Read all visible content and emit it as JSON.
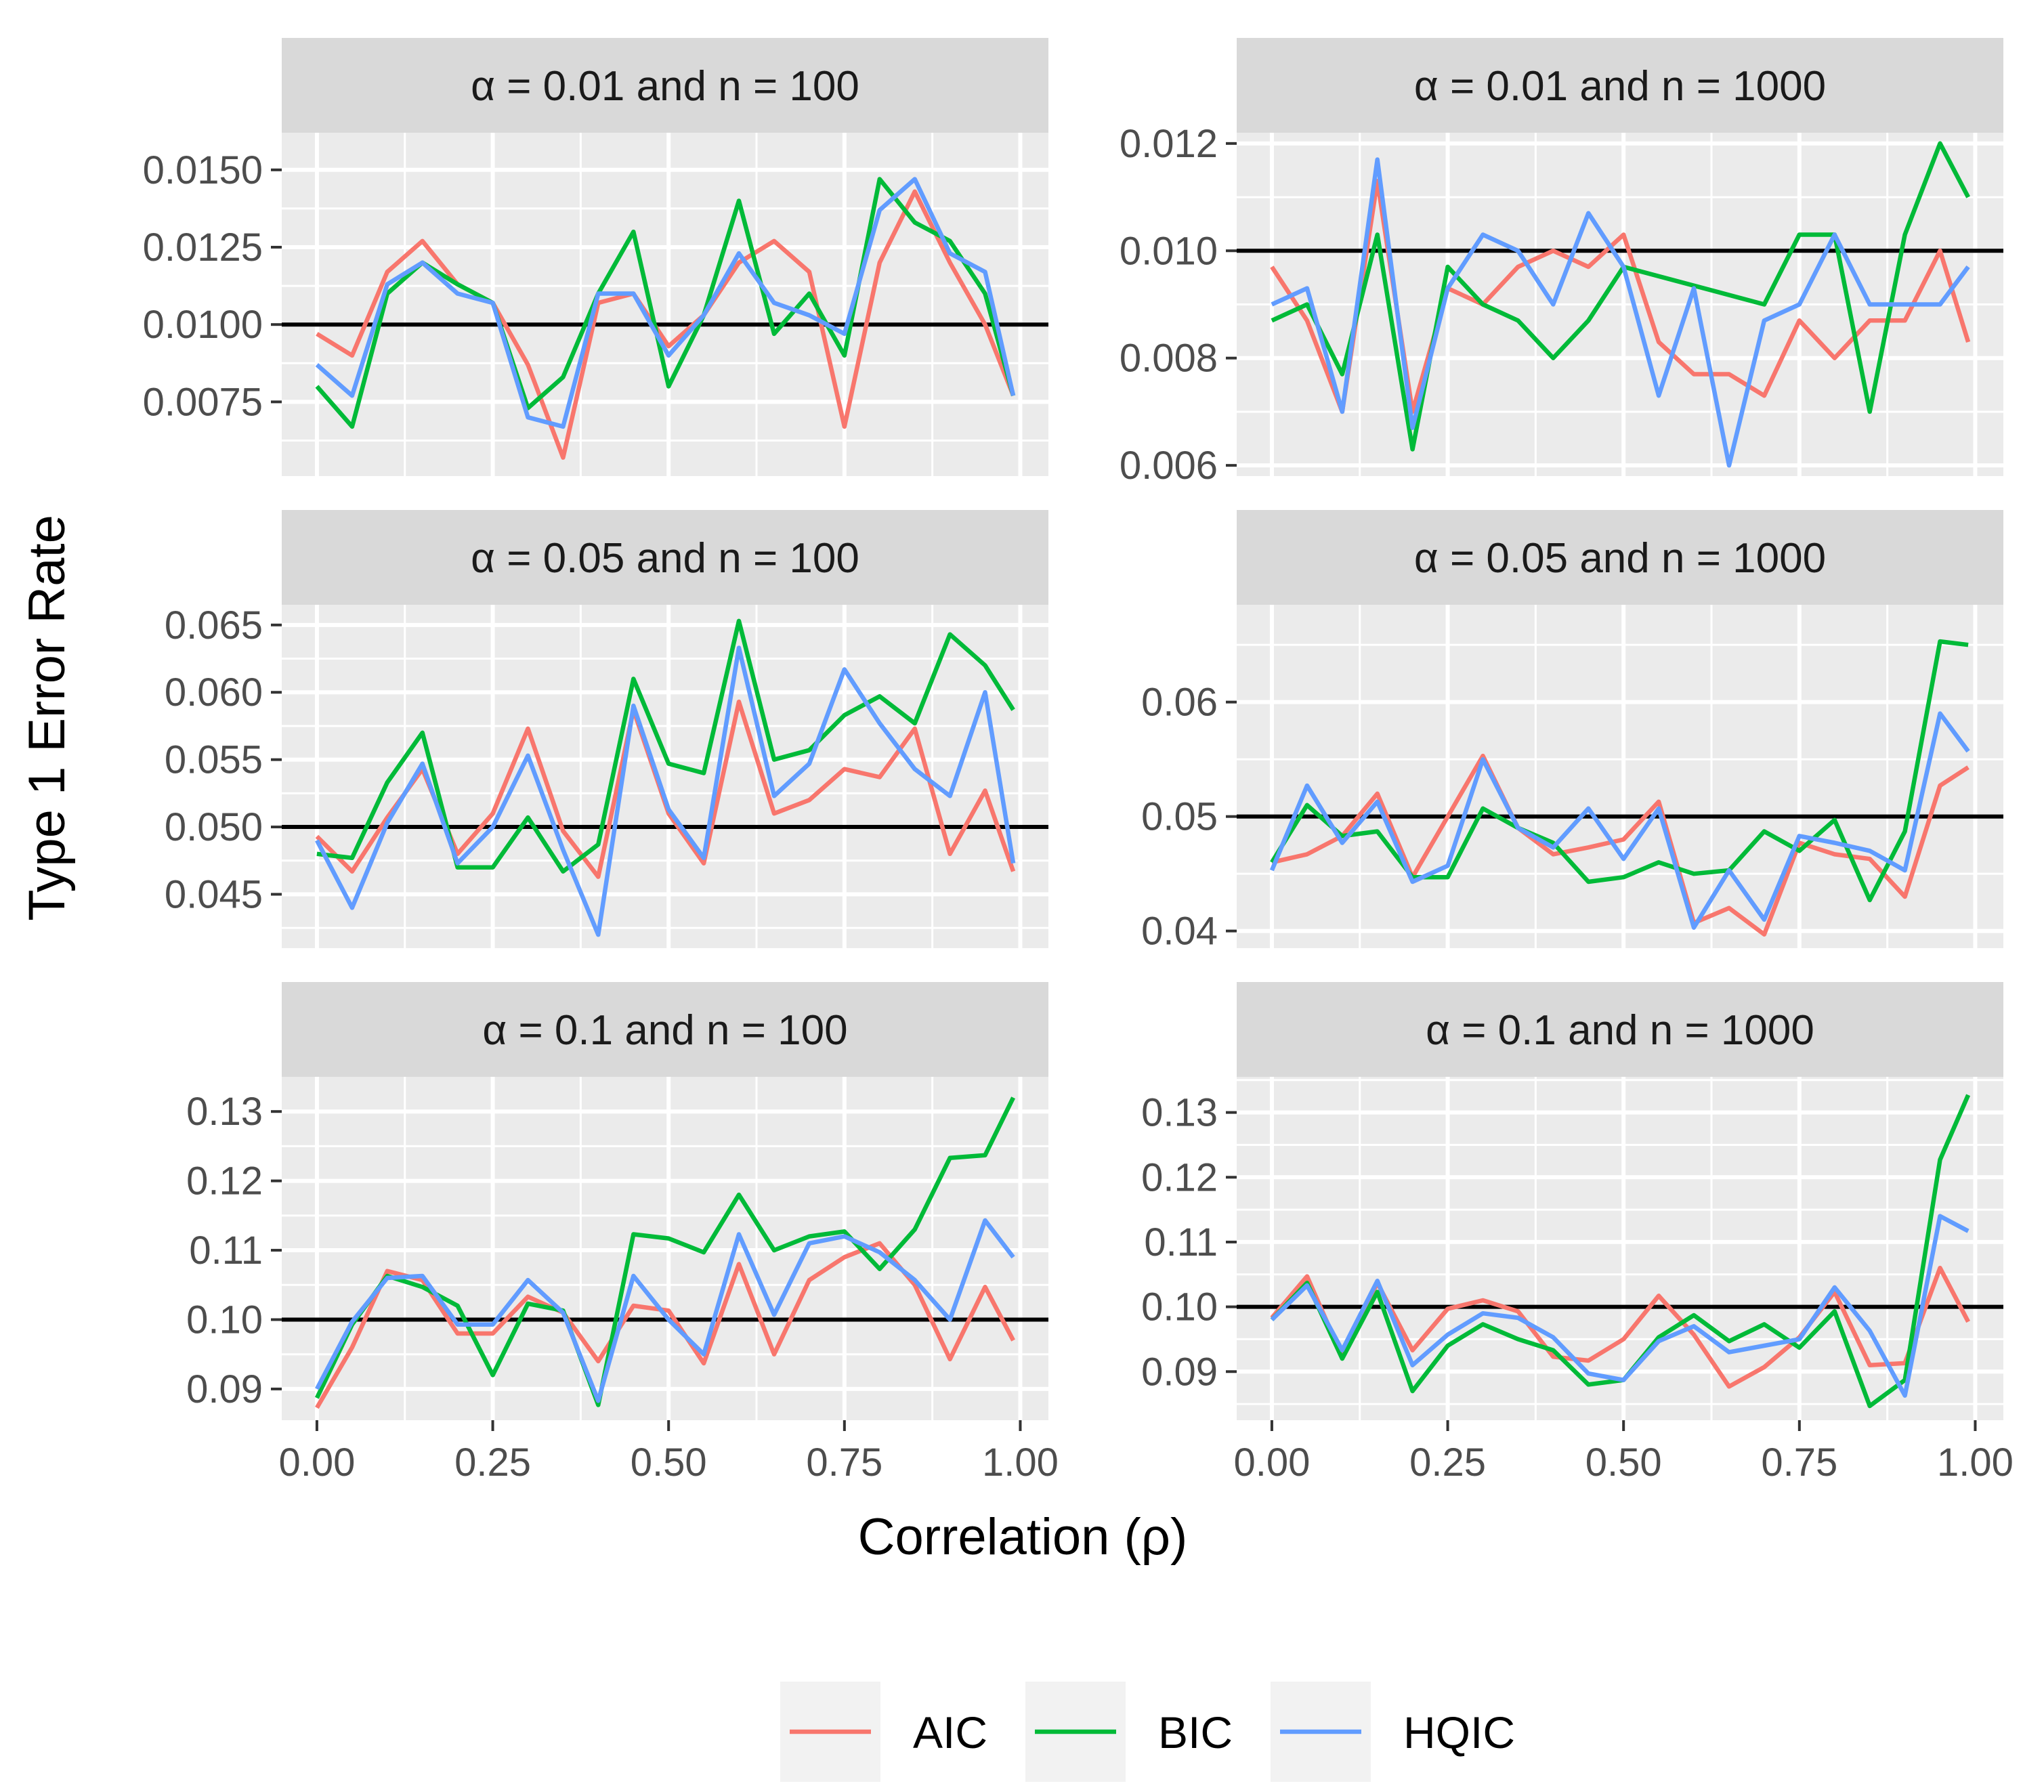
{
  "chart_data": {
    "type": "line",
    "ylabel": "Type 1 Error Rate",
    "xlabel": "Correlation (ρ)",
    "x": [
      0,
      0.05,
      0.1,
      0.15,
      0.2,
      0.25,
      0.3,
      0.35,
      0.4,
      0.45,
      0.5,
      0.55,
      0.6,
      0.65,
      0.7,
      0.75,
      0.8,
      0.85,
      0.9,
      0.95,
      0.99
    ],
    "xlim": [
      -0.05,
      1.04
    ],
    "x_ticks": [
      0,
      0.25,
      0.5,
      0.75,
      1.0
    ],
    "x_tick_labels": [
      "0.00",
      "0.25",
      "0.50",
      "0.75",
      "1.00"
    ],
    "reference_line": "horizontal black line at the nominal α level",
    "colors": {
      "AIC": "#F8766D",
      "BIC": "#00BA38",
      "HQIC": "#619CFF",
      "panel_bg": "#EBEBEB",
      "strip_bg": "#D9D9D9",
      "grid": "#FFFFFF",
      "reference": "#000000"
    },
    "legend": {
      "position": "bottom",
      "entries": [
        "AIC",
        "BIC",
        "HQIC"
      ]
    },
    "panels": [
      {
        "strip": "α = 0.01 and n = 100",
        "reference": 0.01,
        "ylim": [
          0.0051,
          0.0162
        ],
        "y_ticks": [
          0.0075,
          0.01,
          0.0125,
          0.015
        ],
        "y_tick_labels": [
          "0.0075",
          "0.0100",
          "0.0125",
          "0.0150"
        ],
        "series": [
          {
            "name": "AIC",
            "values": [
              0.0097,
              0.009,
              0.0117,
              0.0127,
              0.0113,
              0.0107,
              0.0087,
              0.0057,
              0.0107,
              0.011,
              0.0093,
              0.0103,
              0.012,
              0.0127,
              0.0117,
              0.0067,
              0.012,
              0.0143,
              0.012,
              0.01,
              0.0077
            ]
          },
          {
            "name": "BIC",
            "values": [
              0.008,
              0.0067,
              0.011,
              0.012,
              0.0113,
              0.0107,
              0.0073,
              0.0083,
              0.011,
              0.013,
              0.008,
              0.0103,
              0.014,
              0.0097,
              0.011,
              0.009,
              0.0147,
              0.0133,
              0.0127,
              0.011,
              0.0077
            ]
          },
          {
            "name": "HQIC",
            "values": [
              0.0087,
              0.0077,
              0.0113,
              0.012,
              0.011,
              0.0107,
              0.007,
              0.0067,
              0.011,
              0.011,
              0.009,
              0.0103,
              0.0123,
              0.0107,
              0.0103,
              0.0097,
              0.0137,
              0.0147,
              0.0123,
              0.0117,
              0.0077
            ]
          }
        ]
      },
      {
        "strip": "α = 0.01 and n = 1000",
        "reference": 0.01,
        "ylim": [
          0.0058,
          0.0122
        ],
        "y_ticks": [
          0.006,
          0.008,
          0.01,
          0.012
        ],
        "y_tick_labels": [
          "0.006",
          "0.008",
          "0.010",
          "0.012"
        ],
        "series": [
          {
            "name": "AIC",
            "values": [
              0.0097,
              0.0087,
              0.007,
              0.0113,
              0.007,
              0.0093,
              0.009,
              0.0097,
              0.01,
              0.0097,
              0.0103,
              0.0083,
              0.0077,
              0.0077,
              0.0073,
              0.0087,
              0.008,
              0.0087,
              0.0087,
              0.01,
              0.0083
            ]
          },
          {
            "name": "BIC",
            "values": [
              0.0087,
              0.009,
              0.0077,
              0.0103,
              0.0063,
              0.0097,
              0.009,
              0.0087,
              0.008,
              0.0087,
              0.0097,
              null,
              null,
              null,
              0.009,
              0.0103,
              0.0103,
              0.007,
              0.0103,
              0.012,
              0.011
            ]
          },
          {
            "name": "HQIC",
            "values": [
              0.009,
              0.0093,
              0.007,
              0.0117,
              0.0067,
              0.0093,
              0.0103,
              0.01,
              0.009,
              0.0107,
              0.0097,
              0.0073,
              0.0093,
              0.006,
              0.0087,
              0.009,
              0.0103,
              0.009,
              0.009,
              0.009,
              0.0097
            ]
          }
        ]
      },
      {
        "strip": "α = 0.05 and n = 100",
        "reference": 0.05,
        "ylim": [
          0.041,
          0.0665
        ],
        "y_ticks": [
          0.045,
          0.05,
          0.055,
          0.06,
          0.065
        ],
        "y_tick_labels": [
          "0.045",
          "0.050",
          "0.055",
          "0.060",
          "0.065"
        ],
        "series": [
          {
            "name": "AIC",
            "values": [
              0.0493,
              0.0467,
              0.0507,
              0.0543,
              0.048,
              0.051,
              0.0573,
              0.0497,
              0.0463,
              0.0587,
              0.051,
              0.0473,
              0.0593,
              0.051,
              0.052,
              0.0543,
              0.0537,
              0.0573,
              0.048,
              0.0527,
              0.0467
            ]
          },
          {
            "name": "BIC",
            "values": [
              0.048,
              0.0477,
              0.0533,
              0.057,
              0.047,
              0.047,
              0.0507,
              0.0467,
              0.0487,
              0.061,
              0.0547,
              0.054,
              0.0653,
              0.055,
              0.0557,
              0.0583,
              0.0597,
              0.0577,
              0.0643,
              0.062,
              0.0587
            ]
          },
          {
            "name": "HQIC",
            "values": [
              0.049,
              0.044,
              0.0503,
              0.0547,
              0.0473,
              0.05,
              0.0553,
              0.0483,
              0.042,
              0.059,
              0.0513,
              0.0477,
              0.0633,
              0.0523,
              0.0547,
              0.0617,
              0.0577,
              0.0543,
              0.0523,
              0.06,
              0.0473
            ]
          }
        ]
      },
      {
        "strip": "α = 0.05 and n = 1000",
        "reference": 0.05,
        "ylim": [
          0.0385,
          0.0685
        ],
        "y_ticks": [
          0.04,
          0.05,
          0.06
        ],
        "y_tick_labels": [
          "0.04",
          "0.05",
          "0.06"
        ],
        "series": [
          {
            "name": "AIC",
            "values": [
              0.046,
              0.0467,
              0.0483,
              0.052,
              0.0447,
              0.05,
              0.0553,
              0.049,
              0.0467,
              0.0473,
              0.048,
              0.0513,
              0.0407,
              0.042,
              0.0397,
              0.0477,
              0.0467,
              0.0463,
              0.043,
              0.0527,
              0.0543
            ]
          },
          {
            "name": "BIC",
            "values": [
              0.046,
              0.051,
              0.0483,
              0.0487,
              0.0447,
              0.0447,
              0.0507,
              0.049,
              0.0477,
              0.0443,
              0.0447,
              0.046,
              0.045,
              0.0453,
              0.0487,
              0.047,
              0.0497,
              0.0427,
              0.0487,
              0.0653,
              0.065
            ]
          },
          {
            "name": "HQIC",
            "values": [
              0.0453,
              0.0527,
              0.0477,
              0.0513,
              0.0443,
              0.0457,
              0.055,
              0.049,
              0.0473,
              0.0507,
              0.0463,
              0.0507,
              0.0403,
              0.0453,
              0.041,
              0.0483,
              0.0477,
              0.047,
              0.0453,
              0.059,
              0.0557
            ]
          }
        ]
      },
      {
        "strip": "α = 0.1 and n = 100",
        "reference": 0.1,
        "ylim": [
          0.0855,
          0.135
        ],
        "y_ticks": [
          0.09,
          0.1,
          0.11,
          0.12,
          0.13
        ],
        "y_tick_labels": [
          "0.09",
          "0.10",
          "0.11",
          "0.12",
          "0.13"
        ],
        "series": [
          {
            "name": "AIC",
            "values": [
              0.0873,
              0.096,
              0.107,
              0.1057,
              0.098,
              0.098,
              0.1033,
              0.101,
              0.094,
              0.102,
              0.1013,
              0.0937,
              0.108,
              0.095,
              0.1057,
              0.109,
              0.111,
              0.105,
              0.0943,
              0.1047,
              0.097
            ]
          },
          {
            "name": "BIC",
            "values": [
              0.0887,
              0.0993,
              0.1063,
              0.1047,
              0.102,
              0.092,
              0.1023,
              0.1013,
              0.0877,
              0.1123,
              0.1117,
              0.1097,
              0.118,
              0.11,
              0.112,
              0.1127,
              0.1073,
              0.113,
              0.1233,
              0.1237,
              0.132
            ]
          },
          {
            "name": "HQIC",
            "values": [
              0.09,
              0.0997,
              0.106,
              0.1063,
              0.0993,
              0.0993,
              0.1057,
              0.101,
              0.0883,
              0.1063,
              0.1,
              0.095,
              0.1123,
              0.1007,
              0.111,
              0.112,
              0.1097,
              0.1057,
              0.1,
              0.1143,
              0.109
            ]
          }
        ]
      },
      {
        "strip": "α = 0.1 and n = 1000",
        "reference": 0.1,
        "ylim": [
          0.0825,
          0.1355
        ],
        "y_ticks": [
          0.09,
          0.1,
          0.11,
          0.12,
          0.13
        ],
        "y_tick_labels": [
          "0.09",
          "0.10",
          "0.11",
          "0.12",
          "0.13"
        ],
        "series": [
          {
            "name": "AIC",
            "values": [
              0.0983,
              0.1047,
              0.0923,
              0.1037,
              0.0933,
              0.0997,
              0.101,
              0.0993,
              0.0923,
              0.0917,
              0.095,
              0.1017,
              0.0957,
              0.0877,
              0.0907,
              0.0953,
              0.1023,
              0.091,
              0.0913,
              0.106,
              0.0977
            ]
          },
          {
            "name": "BIC",
            "values": [
              0.098,
              0.1037,
              0.092,
              0.1023,
              0.087,
              0.094,
              0.0973,
              0.095,
              0.0933,
              0.088,
              0.0887,
              0.0953,
              0.0987,
              0.0947,
              0.0973,
              0.0937,
              0.0993,
              0.0847,
              0.0887,
              0.1227,
              0.1327
            ]
          },
          {
            "name": "HQIC",
            "values": [
              0.098,
              0.1033,
              0.0933,
              0.104,
              0.091,
              0.0957,
              0.099,
              0.0983,
              0.0953,
              0.0897,
              0.0887,
              0.0947,
              0.097,
              0.093,
              0.094,
              0.095,
              0.103,
              0.0963,
              0.0863,
              0.114,
              0.1117
            ]
          }
        ]
      }
    ]
  }
}
